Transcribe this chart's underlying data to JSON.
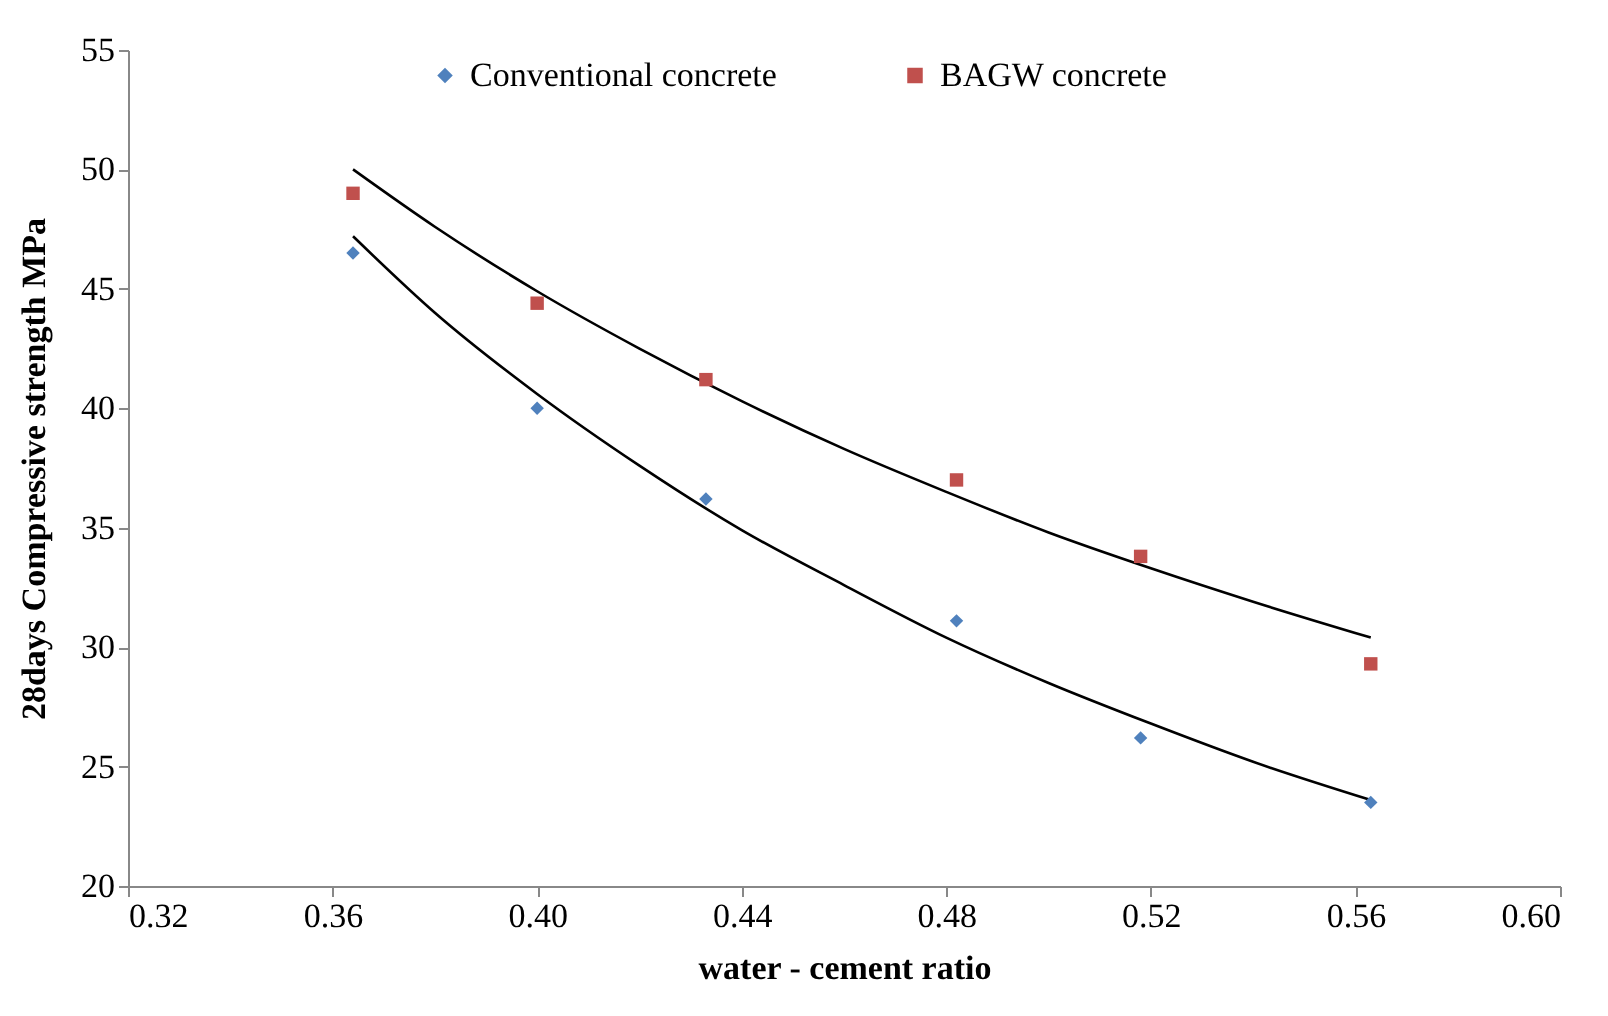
{
  "chart_data": {
    "type": "scatter",
    "xlabel": "water - cement ratio",
    "ylabel": "28days Compressive strength  MPa",
    "xlim": [
      0.32,
      0.6
    ],
    "xticks": [
      {
        "value": 0.32,
        "label": "0.32"
      },
      {
        "value": 0.36,
        "label": "0.36"
      },
      {
        "value": 0.4,
        "label": "0.40"
      },
      {
        "value": 0.44,
        "label": "0.44"
      },
      {
        "value": 0.48,
        "label": "0.48"
      },
      {
        "value": 0.52,
        "label": "0.52"
      },
      {
        "value": 0.56,
        "label": "0.56"
      },
      {
        "value": 0.6,
        "label": "0.60"
      }
    ],
    "ylim": [
      20,
      55
    ],
    "yticks": [
      20,
      25,
      30,
      35,
      40,
      45,
      50,
      55
    ],
    "grid": false,
    "legend": "top",
    "series": [
      {
        "name": "Conventional concrete",
        "type": "scatter",
        "marker": "diamond",
        "color": "#4f81bd",
        "x": [
          0.364,
          0.4,
          0.433,
          0.482,
          0.518,
          0.563
        ],
        "values": [
          46.5,
          40,
          36.2,
          31.1,
          26.2,
          23.5
        ]
      },
      {
        "name": "BAGW concrete",
        "type": "scatter",
        "marker": "square",
        "color": "#c0504d",
        "x": [
          0.364,
          0.4,
          0.433,
          0.482,
          0.518,
          0.563
        ],
        "values": [
          49,
          44.4,
          41.2,
          37,
          33.8,
          29.3
        ]
      },
      {
        "type": "line",
        "marker": "none",
        "line_style": "solid",
        "color": "#000000",
        "x": [
          0.364,
          0.38,
          0.4,
          0.42,
          0.44,
          0.46,
          0.48,
          0.5,
          0.52,
          0.54,
          0.563
        ],
        "values": [
          47.2,
          44.0,
          40.6,
          37.6,
          34.9,
          32.6,
          30.4,
          28.5,
          26.8,
          25.2,
          23.6
        ]
      },
      {
        "type": "line",
        "marker": "none",
        "line_style": "solid",
        "color": "#000000",
        "x": [
          0.364,
          0.38,
          0.4,
          0.42,
          0.44,
          0.46,
          0.48,
          0.5,
          0.52,
          0.54,
          0.563
        ],
        "values": [
          50.0,
          47.6,
          44.9,
          42.5,
          40.3,
          38.3,
          36.5,
          34.8,
          33.3,
          31.9,
          30.4
        ]
      }
    ]
  }
}
